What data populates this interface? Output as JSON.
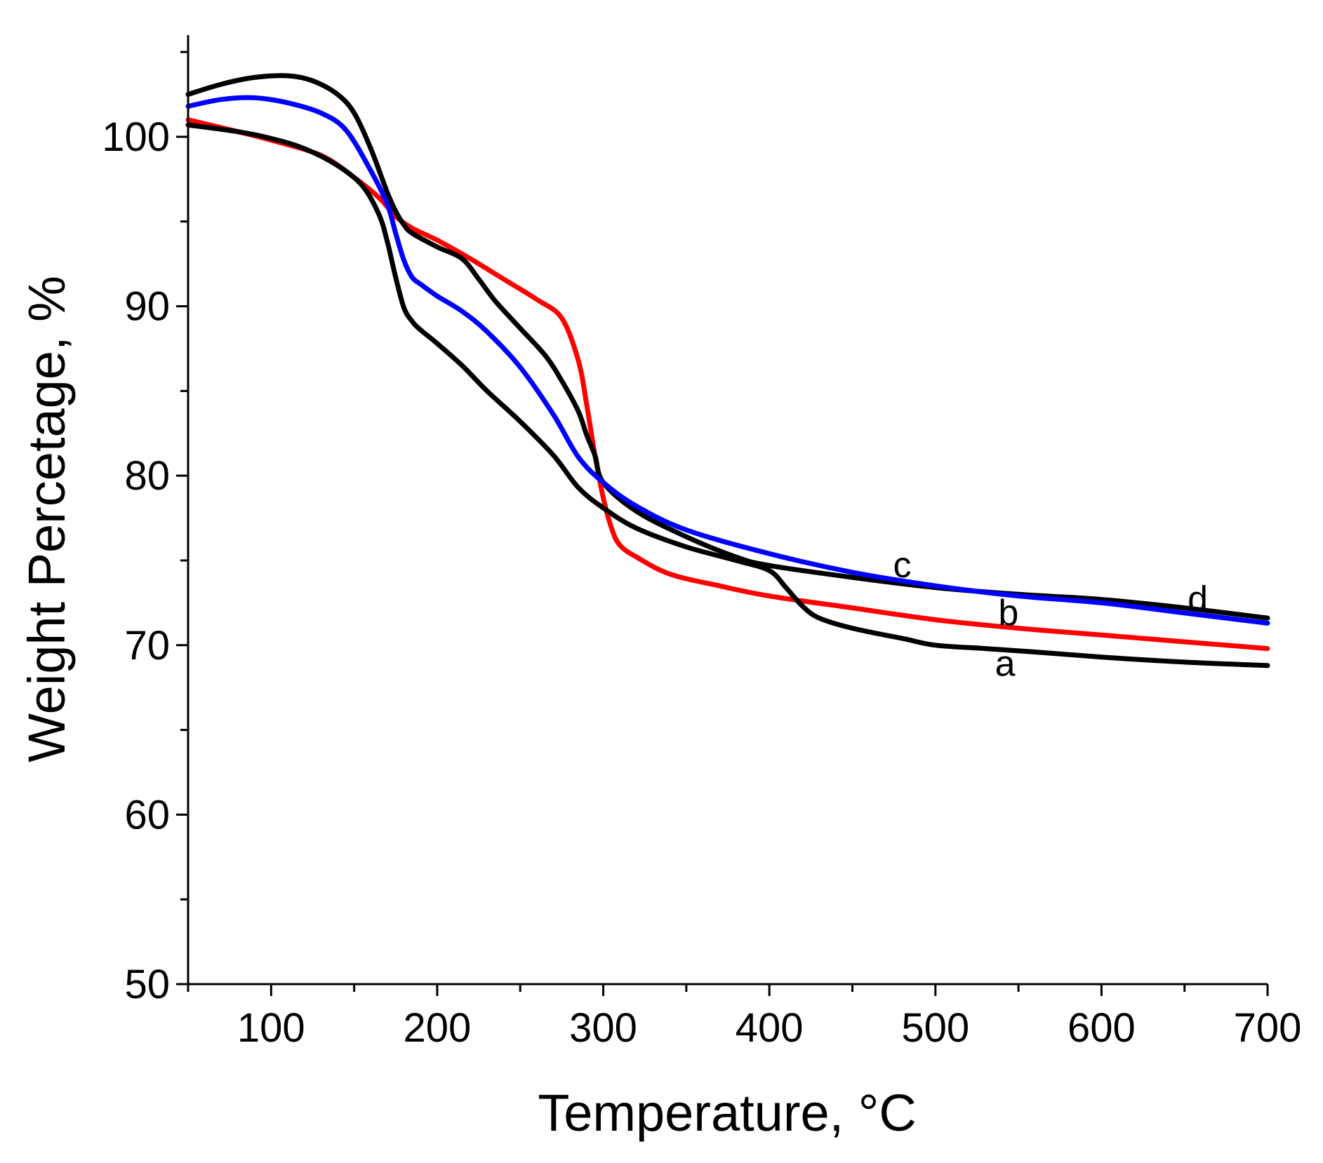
{
  "chart_data": {
    "type": "line",
    "title": "",
    "xlabel": "Temperature, °C",
    "ylabel": "Weight Percetage, %",
    "xlim": [
      50,
      700
    ],
    "ylim": [
      50,
      106
    ],
    "x_ticks": [
      100,
      200,
      300,
      400,
      500,
      600,
      700
    ],
    "y_ticks": [
      50,
      60,
      70,
      80,
      90,
      100
    ],
    "grid": false,
    "series": [
      {
        "name": "a",
        "color": "#000000",
        "x": [
          50,
          80,
          100,
          120,
          140,
          155,
          165,
          170,
          175,
          180,
          185,
          190,
          200,
          215,
          230,
          250,
          270,
          285,
          300,
          320,
          350,
          380,
          400,
          410,
          420,
          430,
          450,
          480,
          500,
          530,
          560,
          600,
          650,
          700
        ],
        "y": [
          100.7,
          100.3,
          99.9,
          99.3,
          98.3,
          97.1,
          95.4,
          93.8,
          91.7,
          89.9,
          89.1,
          88.6,
          87.8,
          86.5,
          85.0,
          83.2,
          81.2,
          79.3,
          78.1,
          76.9,
          75.8,
          75.0,
          74.4,
          73.4,
          72.3,
          71.6,
          71.0,
          70.4,
          70.0,
          69.8,
          69.6,
          69.3,
          69.0,
          68.8
        ]
      },
      {
        "name": "b",
        "color": "#ff0000",
        "x": [
          50,
          80,
          100,
          130,
          150,
          165,
          175,
          185,
          200,
          220,
          240,
          260,
          275,
          285,
          290,
          295,
          300,
          305,
          310,
          320,
          340,
          370,
          400,
          450,
          500,
          550,
          600,
          650,
          700
        ],
        "y": [
          101.0,
          100.3,
          99.8,
          98.9,
          97.6,
          96.4,
          95.3,
          94.6,
          93.9,
          92.8,
          91.6,
          90.4,
          89.3,
          86.8,
          84.2,
          81.2,
          78.7,
          76.9,
          75.9,
          75.2,
          74.2,
          73.5,
          72.9,
          72.2,
          71.5,
          71.0,
          70.6,
          70.2,
          69.8
        ]
      },
      {
        "name": "c",
        "color": "#0000ff",
        "x": [
          50,
          70,
          90,
          110,
          130,
          145,
          160,
          170,
          175,
          180,
          185,
          190,
          200,
          215,
          230,
          250,
          270,
          285,
          300,
          320,
          350,
          400,
          450,
          500,
          550,
          600,
          650,
          700
        ],
        "y": [
          101.8,
          102.2,
          102.3,
          102.0,
          101.4,
          100.4,
          98.0,
          96.0,
          94.3,
          92.7,
          91.7,
          91.3,
          90.6,
          89.7,
          88.5,
          86.4,
          83.6,
          81.1,
          79.6,
          78.2,
          76.8,
          75.4,
          74.3,
          73.5,
          72.9,
          72.5,
          71.9,
          71.3
        ]
      },
      {
        "name": "d",
        "color": "#000000",
        "x": [
          50,
          70,
          90,
          110,
          125,
          140,
          150,
          160,
          170,
          175,
          180,
          185,
          200,
          215,
          225,
          235,
          250,
          265,
          275,
          285,
          290,
          295,
          300,
          320,
          350,
          380,
          400,
          450,
          500,
          550,
          600,
          650,
          700
        ],
        "y": [
          102.5,
          103.1,
          103.5,
          103.6,
          103.3,
          102.5,
          101.4,
          99.3,
          96.7,
          95.6,
          94.8,
          94.3,
          93.5,
          92.8,
          91.6,
          90.3,
          88.7,
          87.1,
          85.6,
          83.8,
          82.4,
          81.2,
          79.6,
          77.9,
          76.4,
          75.2,
          74.7,
          74.0,
          73.4,
          73.0,
          72.7,
          72.2,
          71.6
        ]
      }
    ],
    "annotations": [
      {
        "text": "a",
        "x": 542,
        "y": 68.2
      },
      {
        "text": "b",
        "x": 544,
        "y": 71.2
      },
      {
        "text": "c",
        "x": 480,
        "y": 74.0
      },
      {
        "text": "d",
        "x": 658,
        "y": 72.0
      }
    ]
  }
}
